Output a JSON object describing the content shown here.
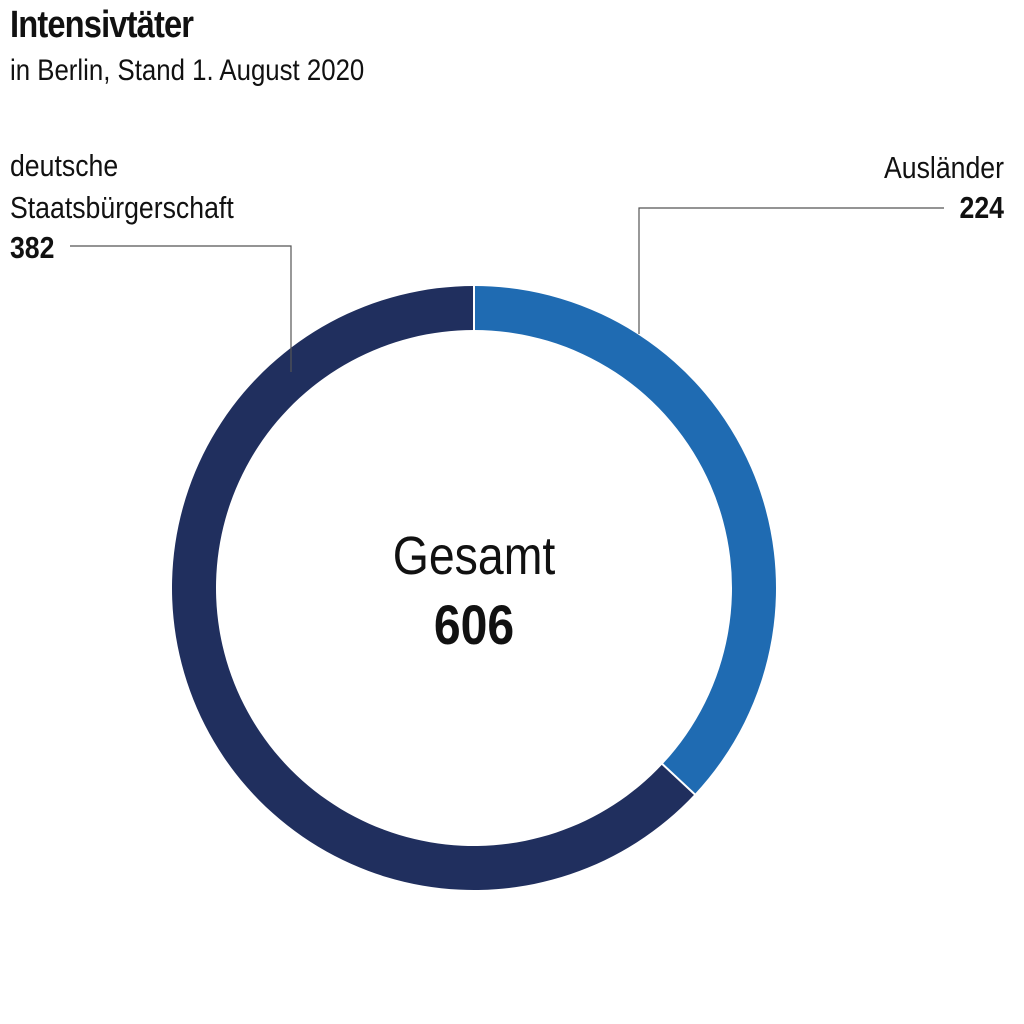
{
  "title": "Intensivtäter",
  "subtitle": "in Berlin, Stand 1. August 2020",
  "chart_data": {
    "type": "pie",
    "variant": "donut",
    "title": "Intensivtäter",
    "subtitle": "in Berlin, Stand 1. August 2020",
    "total_label": "Gesamt",
    "total_value": 606,
    "slices": [
      {
        "label_lines": [
          "Ausländer"
        ],
        "value": 224,
        "color": "#1f6bb2"
      },
      {
        "label_lines": [
          "deutsche",
          "Staatsbürgerschaft"
        ],
        "value": 382,
        "color": "#202f5e"
      }
    ]
  }
}
